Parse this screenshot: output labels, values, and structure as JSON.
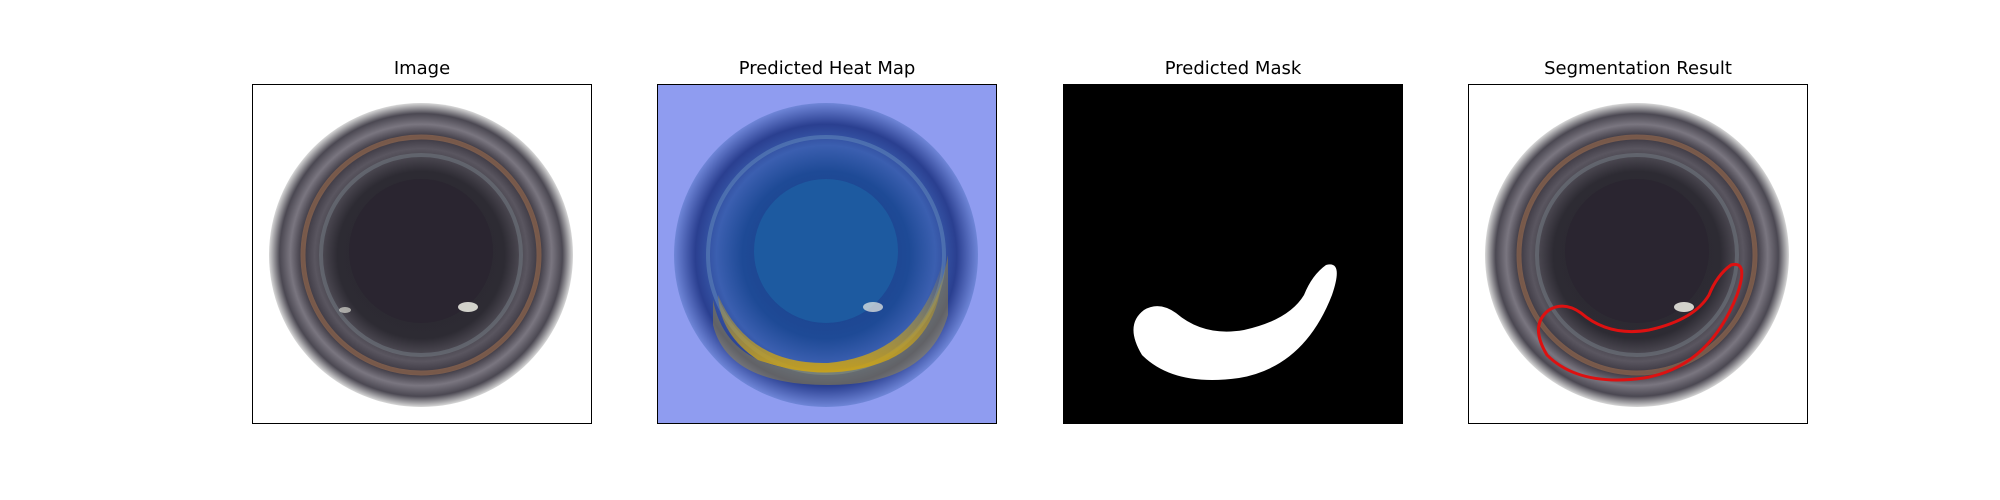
{
  "figure": {
    "panels": [
      {
        "id": "image",
        "title": "Image"
      },
      {
        "id": "heatmap",
        "title": "Predicted Heat Map"
      },
      {
        "id": "mask",
        "title": "Predicted Mask"
      },
      {
        "id": "segmentation",
        "title": "Segmentation Result"
      }
    ]
  },
  "colors": {
    "outline": "#dd1111",
    "mask_fill": "#ffffff",
    "mask_bg": "#000000",
    "heat_low": "#8f9cf0",
    "heat_high": "#c9a21a"
  }
}
